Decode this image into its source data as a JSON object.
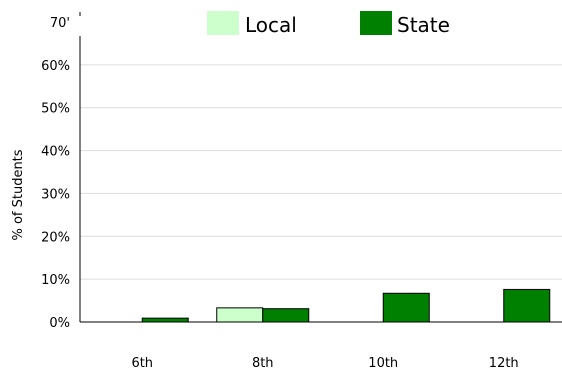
{
  "chart_data": {
    "type": "bar",
    "title": "",
    "xlabel": "",
    "ylabel": "% of Students",
    "categories": [
      "6th",
      "8th",
      "10th",
      "12th"
    ],
    "series": [
      {
        "name": "Local",
        "color": "#ccffcc",
        "values": [
          null,
          3.3,
          null,
          null
        ]
      },
      {
        "name": "State",
        "color": "#008000",
        "values": [
          0.9,
          3.1,
          6.7,
          7.6
        ]
      }
    ],
    "ylim": [
      0,
      70
    ],
    "yticks": [
      0,
      10,
      20,
      30,
      40,
      50,
      60,
      70
    ],
    "ytick_labels": [
      "0%",
      "10%",
      "20%",
      "30%",
      "40%",
      "50%",
      "60%",
      "70'"
    ],
    "grid": true,
    "legend_position": "top"
  }
}
